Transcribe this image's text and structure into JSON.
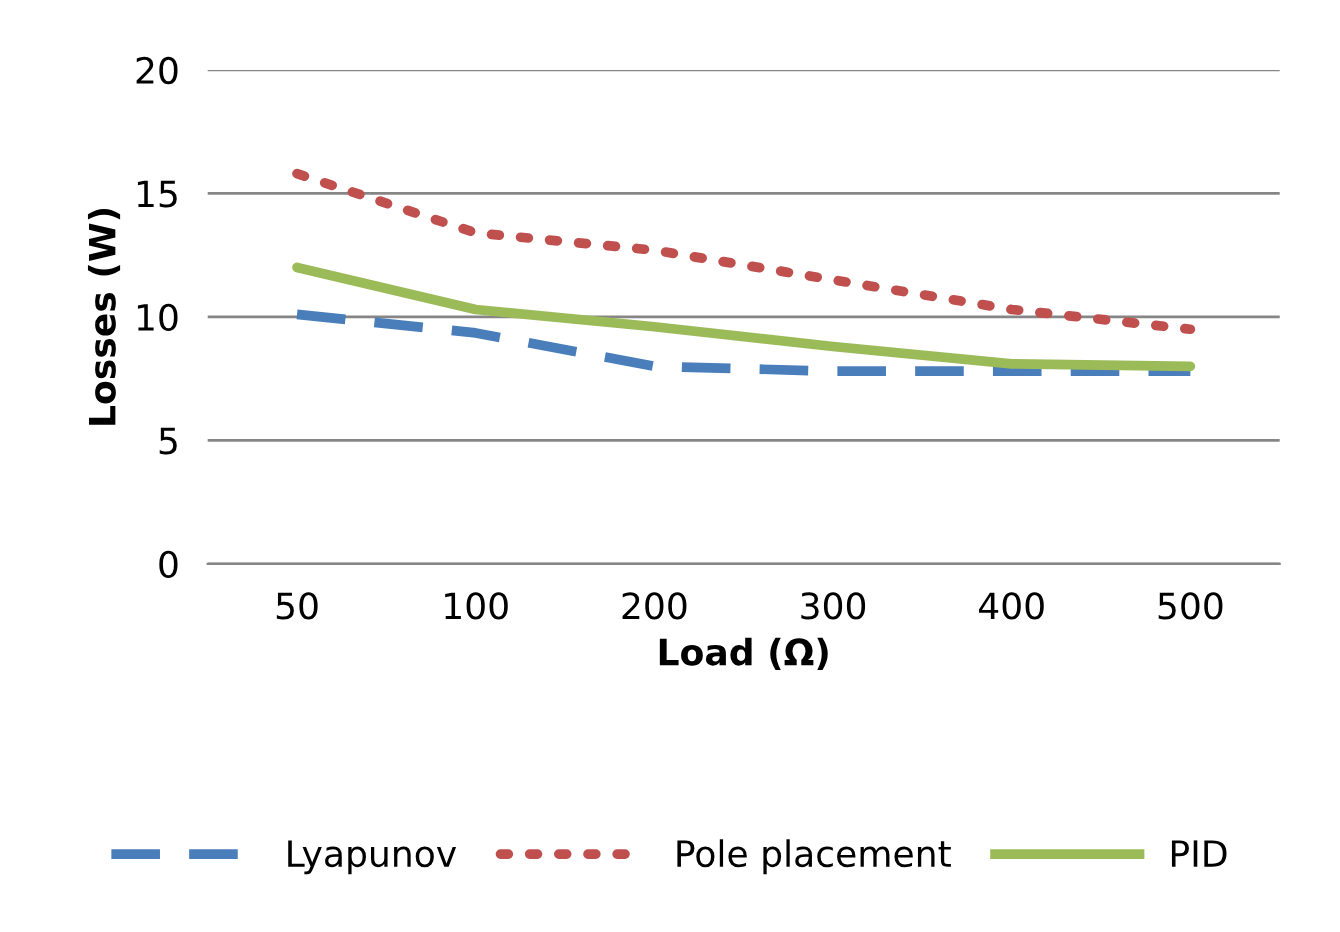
{
  "chart_data": {
    "type": "line",
    "xlabel": "Load (Ω)",
    "ylabel": "Losses (W)",
    "categories": [
      "50",
      "100",
      "200",
      "300",
      "400",
      "500"
    ],
    "series": [
      {
        "name": "Lyapunov",
        "color": "#4a7ebb",
        "line_style": "dashed",
        "values": [
          10.1,
          9.35,
          8.0,
          7.8,
          7.8,
          7.8
        ]
      },
      {
        "name": "Pole placement",
        "color": "#c0504d",
        "line_style": "dotted",
        "values": [
          15.8,
          13.4,
          12.7,
          11.5,
          10.3,
          9.5
        ]
      },
      {
        "name": "PID",
        "color": "#9bbb59",
        "line_style": "solid",
        "values": [
          12.0,
          10.3,
          9.6,
          8.8,
          8.1,
          8.0
        ]
      }
    ],
    "ylim": [
      0,
      20
    ],
    "yticks": [
      0,
      5,
      10,
      15,
      20
    ],
    "grid": "y",
    "legend": "bottom"
  }
}
